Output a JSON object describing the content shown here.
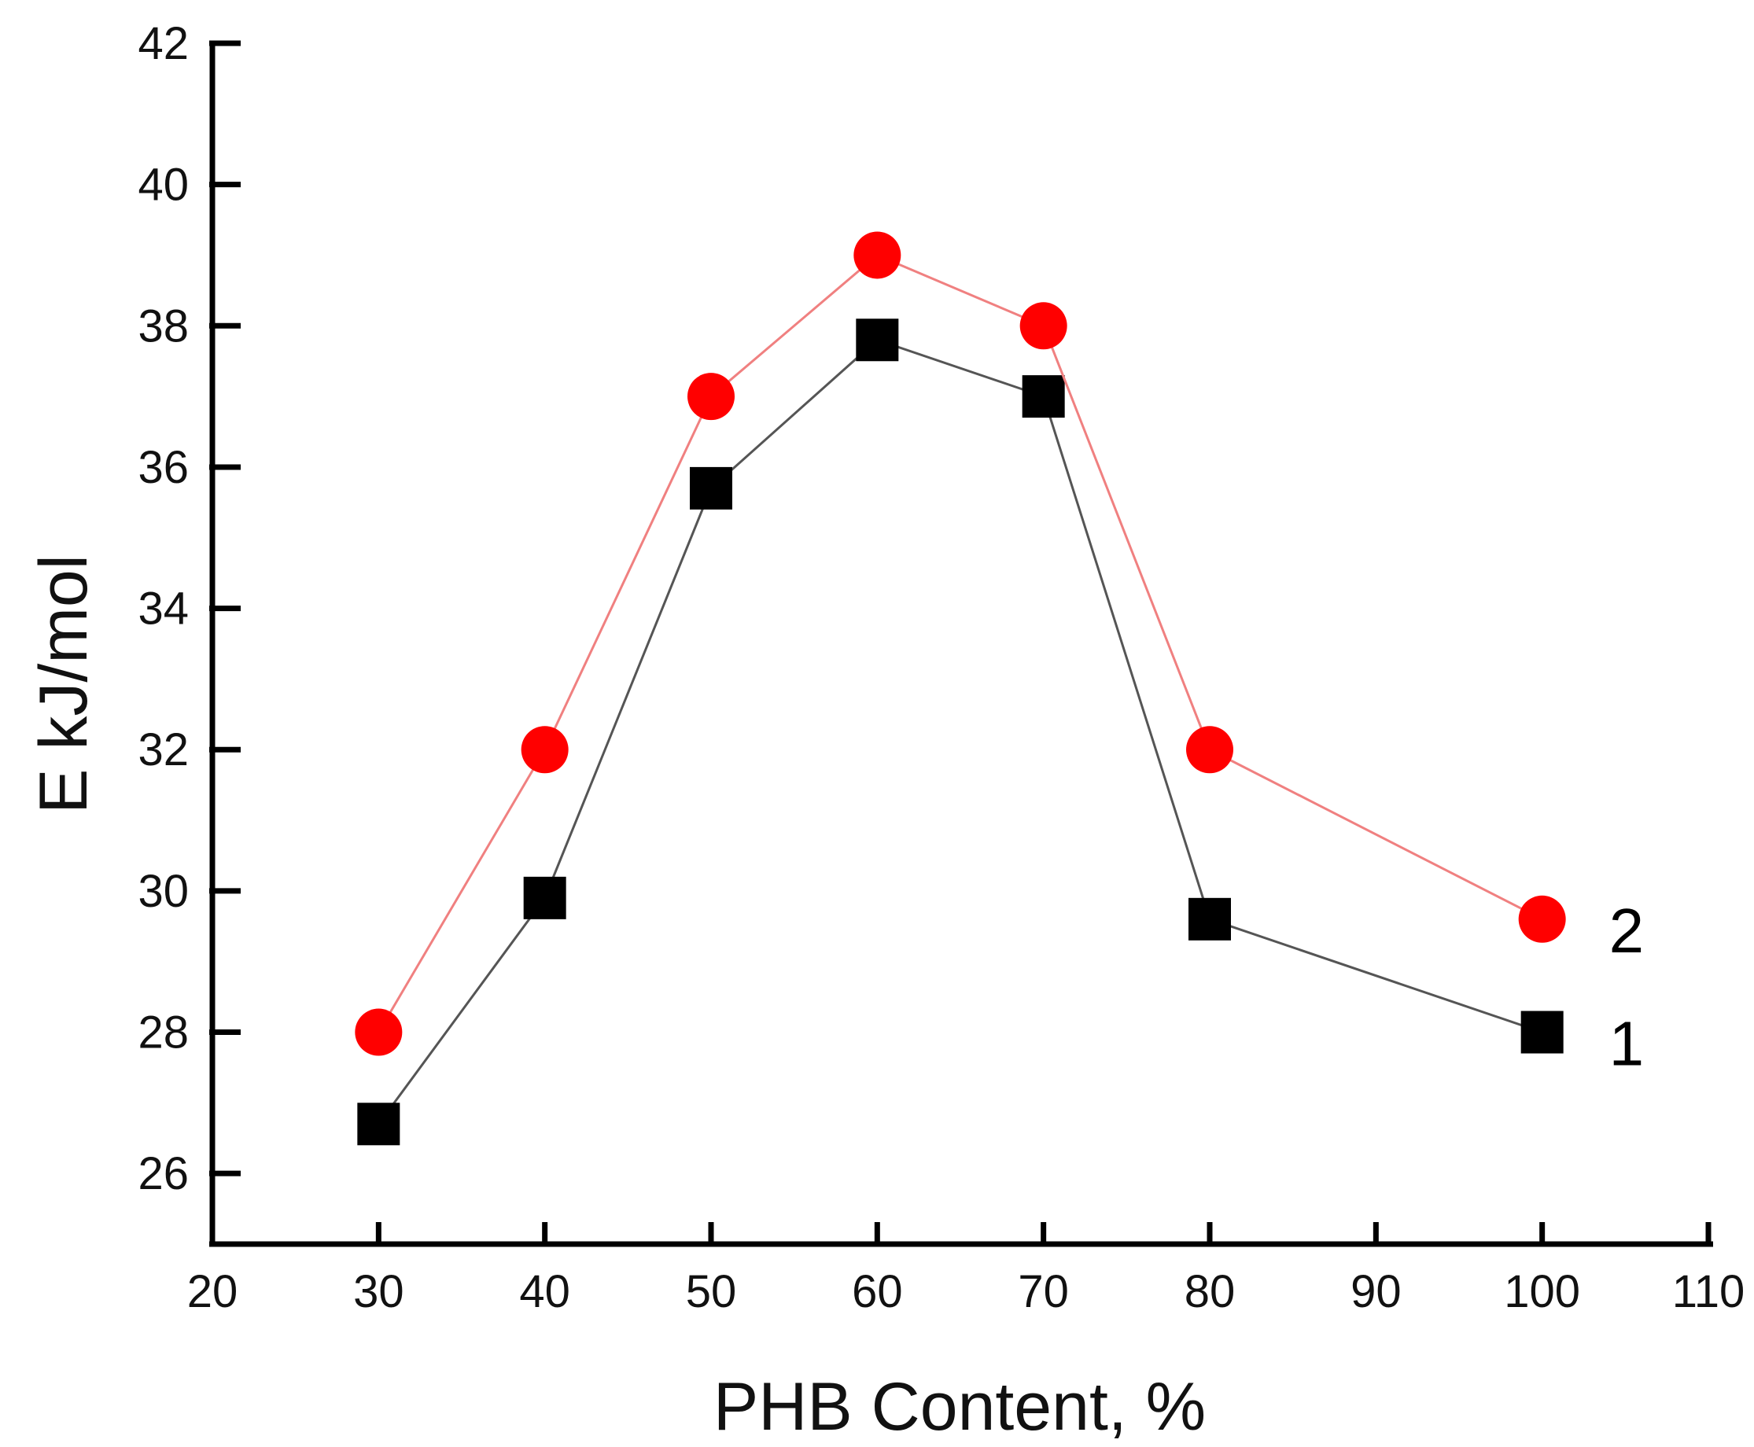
{
  "chart_data": {
    "type": "line",
    "xlabel": "PHB Content, %",
    "ylabel": "E kJ/mol",
    "xlim": [
      20,
      110
    ],
    "ylim": [
      25,
      42
    ],
    "xticks": [
      20,
      30,
      40,
      50,
      60,
      70,
      80,
      90,
      100,
      110
    ],
    "yticks": [
      26,
      28,
      30,
      32,
      34,
      36,
      38,
      40,
      42
    ],
    "grid": false,
    "series": [
      {
        "name": "1",
        "marker": "square",
        "color": "#000000",
        "line_color": "#555555",
        "x": [
          30,
          40,
          50,
          60,
          70,
          80,
          100
        ],
        "y": [
          26.7,
          29.9,
          35.7,
          37.8,
          37.0,
          29.6,
          28.0
        ]
      },
      {
        "name": "2",
        "marker": "circle",
        "color": "#ff0000",
        "line_color": "#f08080",
        "x": [
          30,
          40,
          50,
          60,
          70,
          80,
          100
        ],
        "y": [
          28.0,
          32.0,
          37.0,
          39.0,
          38.0,
          32.0,
          29.6
        ]
      }
    ]
  }
}
